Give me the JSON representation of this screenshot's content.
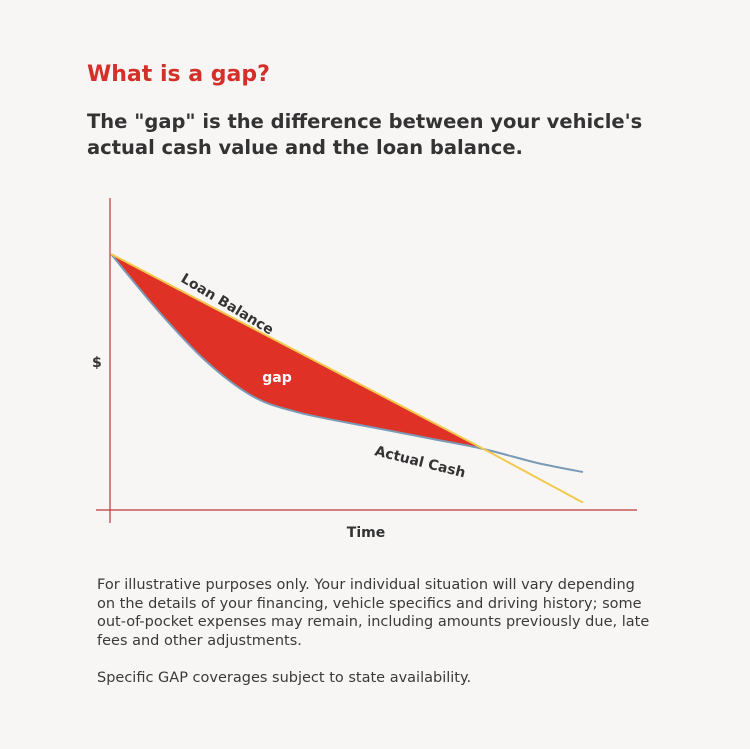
{
  "heading": "What is a gap?",
  "subheading": "The \"gap\" is the difference between your vehicle's actual cash value and the loan balance.",
  "chart_data": {
    "type": "line",
    "title": "",
    "ylabel": "$",
    "xlabel": "Time",
    "annotations": {
      "gap_label": "gap"
    },
    "series": [
      {
        "name": "Loan Balance",
        "color": "#f2c94c",
        "points": [
          [
            0,
            100
          ],
          [
            79,
            17.7
          ],
          [
            100,
            -4.9
          ]
        ]
      },
      {
        "name": "Actual Cash",
        "color": "#7a9ab5",
        "points": [
          [
            0,
            100
          ],
          [
            10,
            76
          ],
          [
            20,
            55
          ],
          [
            30,
            40
          ],
          [
            40,
            33
          ],
          [
            55,
            27
          ],
          [
            68,
            22
          ],
          [
            79,
            17.7
          ],
          [
            90,
            12
          ],
          [
            100,
            8
          ]
        ]
      }
    ],
    "shaded_region": {
      "label": "gap",
      "color": "#e03127",
      "between": [
        "Loan Balance",
        "Actual Cash"
      ],
      "x_range": [
        0,
        79
      ]
    },
    "axis_color": "#b73a3a",
    "grid": false,
    "ticks": false
  },
  "disclaimer": "For illustrative purposes only. Your individual situation will vary depending on the details of your financing, vehicle specifics and driving history; some out-of-pocket expenses may remain, including amounts previously due, late fees and other adjustments.",
  "availability": "Specific GAP coverages subject to state availability."
}
